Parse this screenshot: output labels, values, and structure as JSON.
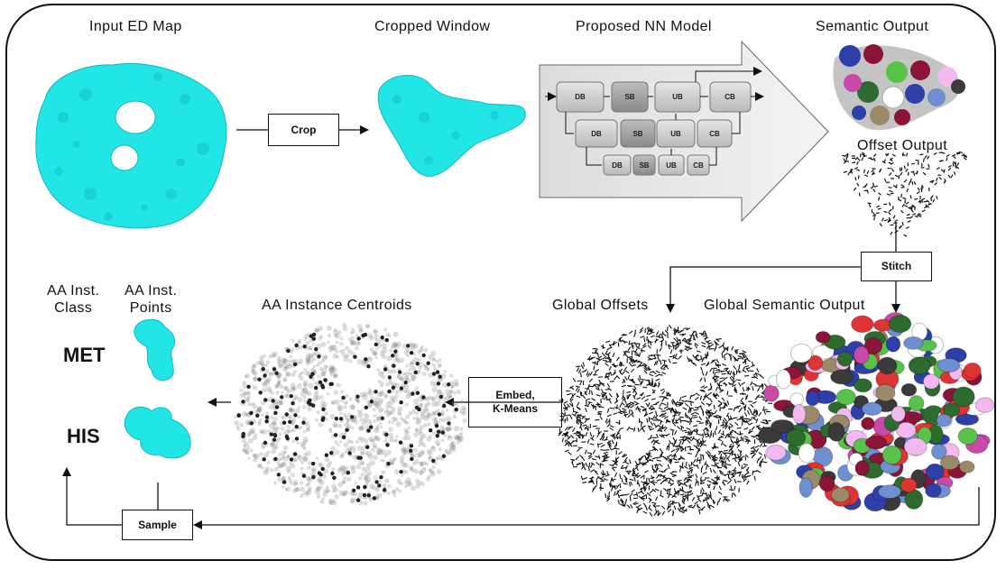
{
  "labels": {
    "input_map": "Input ED Map",
    "cropped_window": "Cropped Window",
    "nn_model": "Proposed NN Model",
    "semantic_output": "Semantic Output",
    "offset_output": "Offset Output",
    "global_offsets": "Global Offsets",
    "global_semantic": "Global Semantic Output",
    "centroids": "AA Instance Centroids",
    "inst_class": "AA Inst.\nClass",
    "inst_points": "AA Inst.\nPoints"
  },
  "steps": {
    "crop": "Crop",
    "stitch": "Stitch",
    "embed": "Embed,\nK-Means",
    "sample": "Sample"
  },
  "classes": [
    "MET",
    "HIS"
  ],
  "network": {
    "row1": [
      "DB",
      "SB",
      "UB",
      "CB"
    ],
    "row2": [
      "DB",
      "SB",
      "UB",
      "CB"
    ],
    "row3": [
      "DB",
      "SB",
      "UB",
      "CB"
    ]
  },
  "colors": {
    "density": "#22e5e5",
    "semantic_palette": [
      "#2e3fa8",
      "#8b1538",
      "#2d6b2f",
      "#f2b8f0",
      "#58c24b",
      "#3a3a3a",
      "#c84aa8",
      "#9a8a6a",
      "#ffffff",
      "#e03333",
      "#6f8fd0"
    ]
  }
}
